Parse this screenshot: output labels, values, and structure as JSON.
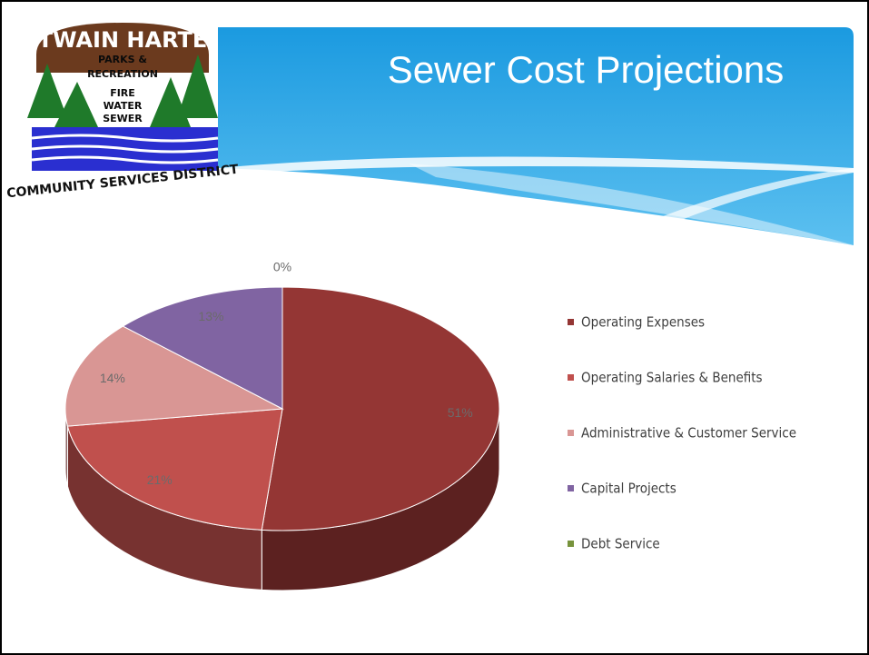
{
  "logo": {
    "name": "TWAIN HARTE",
    "line1": "PARKS &",
    "line2": "RECREATION",
    "line3": "FIRE",
    "line4": "WATER",
    "line5": "SEWER",
    "footer": "COMMUNITY SERVICES DISTRICT"
  },
  "chart_data": {
    "type": "pie",
    "title": "Sewer Cost Projections",
    "categories": [
      "Operating Expenses",
      "Operating Salaries & Benefits",
      "Administrative & Customer Service",
      "Capital Projects",
      "Debt Service"
    ],
    "values": [
      51,
      21,
      14,
      13,
      0
    ],
    "value_labels": [
      "51%",
      "21%",
      "14%",
      "13%",
      "0%"
    ],
    "colors": [
      "#943634",
      "#c0504d",
      "#d99694",
      "#8064a2",
      "#77933c"
    ],
    "legend": "right"
  }
}
